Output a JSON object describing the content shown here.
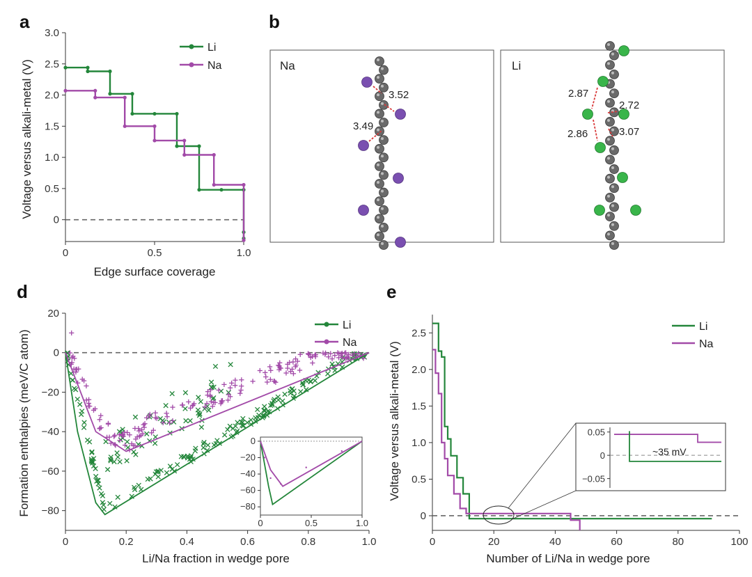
{
  "colors": {
    "li": "#23863a",
    "na": "#a24aa8",
    "dash": "#666666",
    "atom": "#5a5a5a",
    "dist": "#d93a3a"
  },
  "chart_data": [
    {
      "panel": "a",
      "type": "line",
      "xlabel": "Edge surface coverage",
      "ylabel": "Voltage versus alkali-metal (V)",
      "xlim": [
        0,
        1.0
      ],
      "ylim": [
        -0.35,
        3.0
      ],
      "xticks": [
        0,
        0.5,
        1.0
      ],
      "xtick_labels": [
        "0",
        "0.5",
        "1.0"
      ],
      "yticks": [
        0,
        0.5,
        1.0,
        1.5,
        2.0,
        2.5,
        3.0
      ],
      "ytick_labels": [
        "0",
        "0.5",
        "1.0",
        "1.5",
        "2.0",
        "2.5",
        "3.0"
      ],
      "legend": [
        "Li",
        "Na"
      ],
      "hline": 0,
      "series": [
        {
          "name": "Li",
          "x": [
            0,
            0.125,
            0.125,
            0.25,
            0.25,
            0.375,
            0.375,
            0.5,
            0.625,
            0.625,
            0.75,
            0.75,
            0.875,
            1.0,
            1.0,
            1.0
          ],
          "y": [
            2.44,
            2.44,
            2.38,
            2.38,
            2.02,
            2.02,
            1.7,
            1.7,
            1.7,
            1.18,
            1.18,
            0.48,
            0.48,
            0.48,
            -0.2,
            -0.3
          ]
        },
        {
          "name": "Na",
          "x": [
            0,
            0.167,
            0.167,
            0.333,
            0.333,
            0.5,
            0.5,
            0.667,
            0.667,
            0.833,
            0.833,
            1.0,
            1.0
          ],
          "y": [
            2.07,
            2.07,
            1.96,
            1.96,
            1.5,
            1.5,
            1.27,
            1.27,
            1.04,
            1.04,
            0.56,
            0.56,
            -0.33
          ]
        }
      ]
    },
    {
      "panel": "d",
      "type": "scatter",
      "xlabel": "Li/Na fraction in wedge pore",
      "ylabel": "Formation enthalpies (meV/C atom)",
      "xlim": [
        0,
        1.0
      ],
      "ylim": [
        -90,
        20
      ],
      "xticks": [
        0,
        0.2,
        0.4,
        0.6,
        0.8,
        1.0
      ],
      "xtick_labels": [
        "0",
        "0.2",
        "0.4",
        "0.6",
        "0.8",
        "1.0"
      ],
      "yticks": [
        20,
        0,
        -20,
        -40,
        -60,
        -80
      ],
      "ytick_labels": [
        "20",
        "0",
        "−20",
        "−40",
        "−60",
        "−80"
      ],
      "legend": [
        "Li",
        "Na"
      ],
      "hline": 0,
      "series": [
        {
          "name": "Li hull",
          "x": [
            0,
            0.04,
            0.1,
            0.13,
            1.0
          ],
          "y": [
            0,
            -40,
            -76,
            -82,
            0
          ]
        },
        {
          "name": "Na hull",
          "x": [
            0,
            0.05,
            0.1,
            0.2,
            1.0
          ],
          "y": [
            0,
            -20,
            -40,
            -50,
            0
          ]
        }
      ],
      "inset": {
        "xlim": [
          0,
          1.0
        ],
        "ylim": [
          -90,
          5
        ],
        "xticks": [
          0,
          0.5,
          1.0
        ],
        "xtick_labels": [
          "0",
          "0.5",
          "1.0"
        ],
        "yticks": [
          0,
          -20,
          -40,
          -60,
          -80
        ],
        "ytick_labels": [
          "0",
          "−20",
          "−40",
          "−60",
          "−80"
        ],
        "series": [
          {
            "name": "Li",
            "x": [
              0,
              0.08,
              0.12,
              1.0
            ],
            "y": [
              0,
              -55,
              -77,
              0
            ]
          },
          {
            "name": "Na",
            "x": [
              0,
              0.1,
              0.22,
              1.0
            ],
            "y": [
              0,
              -35,
              -55,
              0
            ]
          }
        ]
      }
    },
    {
      "panel": "e",
      "type": "line",
      "xlabel": "Number of Li/Na in wedge pore",
      "ylabel": "Voltage versus alkali-metal (V)",
      "xlim": [
        0,
        100
      ],
      "ylim": [
        -0.2,
        2.75
      ],
      "xticks": [
        0,
        20,
        40,
        60,
        80,
        100
      ],
      "xtick_labels": [
        "0",
        "20",
        "40",
        "60",
        "80",
        "100"
      ],
      "yticks": [
        0,
        0.5,
        1.0,
        1.5,
        2.0,
        2.5
      ],
      "ytick_labels": [
        "0",
        "0.5",
        "1.0",
        "1.5",
        "2.0",
        "2.5"
      ],
      "legend": [
        "Li",
        "Na"
      ],
      "hline": 0,
      "series": [
        {
          "name": "Li",
          "x": [
            0,
            2,
            2,
            3,
            3,
            4,
            4,
            5,
            5,
            6,
            6,
            8,
            8,
            10,
            10,
            12,
            12,
            91
          ],
          "y": [
            2.63,
            2.63,
            2.25,
            2.25,
            2.17,
            2.17,
            1.22,
            1.22,
            1.05,
            1.05,
            0.82,
            0.82,
            0.52,
            0.52,
            0.3,
            0.3,
            -0.04,
            -0.04
          ]
        },
        {
          "name": "Na",
          "x": [
            0,
            1,
            1,
            2,
            2,
            3,
            3,
            4,
            4,
            5,
            5,
            7,
            7,
            9,
            9,
            11,
            11,
            45,
            45,
            48,
            48
          ],
          "y": [
            2.27,
            2.27,
            1.95,
            1.95,
            1.67,
            1.67,
            1.0,
            1.0,
            0.78,
            0.78,
            0.55,
            0.55,
            0.3,
            0.3,
            0.1,
            0.1,
            0.03,
            0.03,
            -0.06,
            -0.06,
            -0.2
          ]
        }
      ],
      "inset": {
        "ylim": [
          -0.07,
          0.06
        ],
        "yticks": [
          0.05,
          0,
          -0.05
        ],
        "ytick_labels": [
          "0.05",
          "0",
          "−0.05"
        ],
        "annotation": "~35 mV"
      }
    }
  ],
  "panel_b": {
    "letter": "b",
    "left": {
      "label": "Na",
      "distances": [
        "3.52",
        "3.49"
      ]
    },
    "right": {
      "label": "Li",
      "distances": [
        "2.87",
        "2.72",
        "2.86",
        "3.07"
      ]
    }
  }
}
